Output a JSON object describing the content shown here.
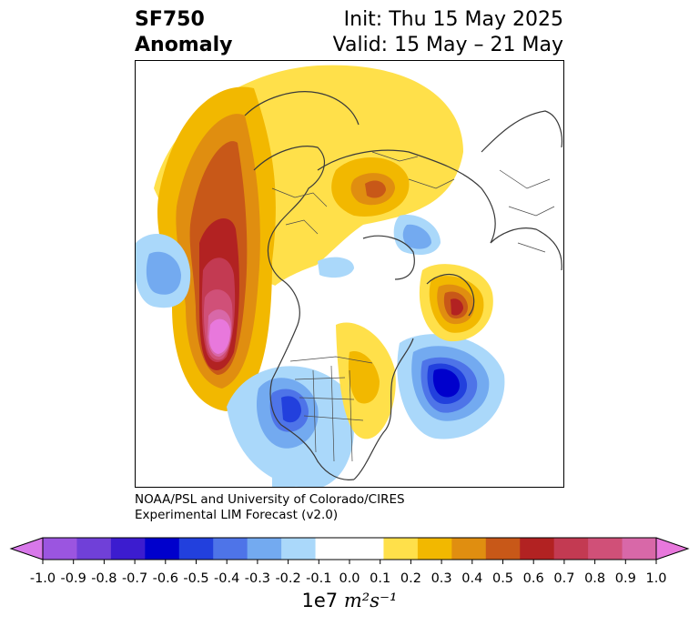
{
  "title": {
    "line1_left": "SF750",
    "line2_left": "Anomaly",
    "line1_right": "Init: Thu 15 May 2025",
    "line2_right": "Valid: 15 May – 21 May"
  },
  "credit": {
    "line1": "NOAA/PSL and University of Colorado/CIRES",
    "line2": "Experimental LIM Forecast (v2.0)"
  },
  "colorbar": {
    "ticks": [
      "-1.0",
      "-0.9",
      "-0.8",
      "-0.7",
      "-0.6",
      "-0.5",
      "-0.4",
      "-0.3",
      "-0.2",
      "-0.1",
      "0.0",
      "0.1",
      "0.2",
      "0.3",
      "0.4",
      "0.5",
      "0.6",
      "0.7",
      "0.8",
      "0.9",
      "1.0"
    ],
    "colors": [
      "#9b55e0",
      "#7040d8",
      "#3c1ccf",
      "#0000cc",
      "#2240dd",
      "#4e74e8",
      "#73aaf0",
      "#aad8fa",
      "#ffffff",
      "#ffffff",
      "#ffe04a",
      "#f2b800",
      "#e08e10",
      "#c85818",
      "#b22222",
      "#c33a52",
      "#d05078",
      "#d868a8"
    ],
    "extend_low_color": "#d878ea",
    "extend_high_color": "#e878dc",
    "units_prefix": "1e7",
    "units_math": "m²s⁻¹"
  },
  "map": {
    "projection": "north-polar-stereographic",
    "features": [
      "coastlines",
      "country-borders",
      "us-state-borders"
    ]
  }
}
